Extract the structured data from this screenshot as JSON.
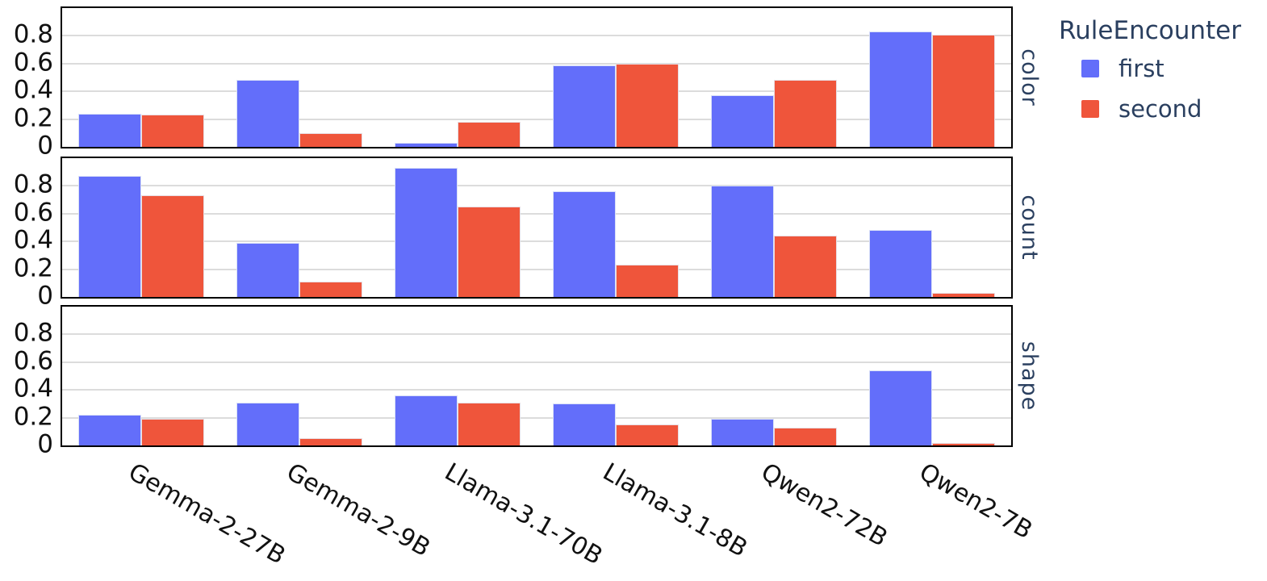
{
  "colors": {
    "series_first": "#636EFA",
    "series_second": "#EF553B",
    "annotation_text": "#2a3f5f",
    "tick_text": "#111111",
    "gridline": "#dcdcdc",
    "panel_border": "#000000",
    "background": "#ffffff"
  },
  "chart_data": {
    "type": "bar",
    "title": "",
    "xlabel": "",
    "ylabel": "",
    "categories": [
      "Gemma-2-27B",
      "Gemma-2-9B",
      "Llama-3.1-70B",
      "Llama-3.1-8B",
      "Qwen2-72B",
      "Qwen2-7B"
    ],
    "facets": [
      {
        "label": "color",
        "series": [
          {
            "name": "first",
            "values": [
              0.24,
              0.48,
              0.03,
              0.59,
              0.37,
              0.83
            ]
          },
          {
            "name": "second",
            "values": [
              0.23,
              0.1,
              0.18,
              0.6,
              0.48,
              0.81
            ]
          }
        ]
      },
      {
        "label": "count",
        "series": [
          {
            "name": "first",
            "values": [
              0.87,
              0.39,
              0.93,
              0.76,
              0.8,
              0.48
            ]
          },
          {
            "name": "second",
            "values": [
              0.73,
              0.11,
              0.65,
              0.23,
              0.44,
              0.03
            ]
          }
        ]
      },
      {
        "label": "shape",
        "series": [
          {
            "name": "first",
            "values": [
              0.22,
              0.31,
              0.36,
              0.3,
              0.19,
              0.54
            ]
          },
          {
            "name": "second",
            "values": [
              0.19,
              0.05,
              0.31,
              0.15,
              0.13,
              0.02
            ]
          }
        ]
      }
    ],
    "legend": {
      "title": "RuleEncounter",
      "position": "top-right",
      "entries": [
        {
          "label": "first",
          "color": "#636EFA"
        },
        {
          "label": "second",
          "color": "#EF553B"
        }
      ]
    },
    "yticks": [
      0,
      0.2,
      0.4,
      0.6,
      0.8
    ],
    "ytick_labels": [
      "0",
      "0.2",
      "0.4",
      "0.6",
      "0.8"
    ],
    "ylim": [
      0,
      1.0
    ],
    "grid": true,
    "x_tick_rotation_deg": 30
  }
}
